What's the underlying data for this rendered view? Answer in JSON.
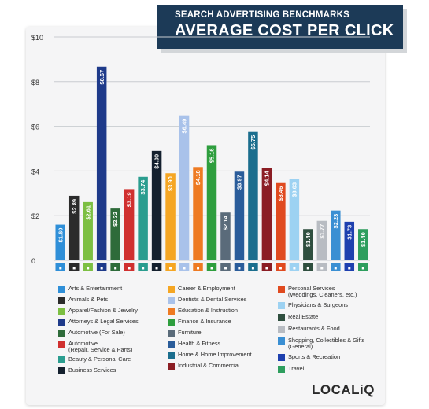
{
  "header": {
    "subtitle": "SEARCH ADVERTISING BENCHMARKS",
    "title": "AVERAGE COST PER CLICK"
  },
  "logo": "LOCALiQ",
  "chart_data": {
    "type": "bar",
    "ylim": [
      0,
      10
    ],
    "yticks": [
      "0",
      "$2",
      "$4",
      "$6",
      "$8",
      "$10"
    ],
    "grid": true,
    "categories": [
      "Arts & Entertainment",
      "Animals & Pets",
      "Apparel/Fashion & Jewelry",
      "Attorneys & Legal Services",
      "Automotive (For Sale)",
      "Automotive (Repair, Service & Parts)",
      "Beauty & Personal Care",
      "Business Services",
      "Career & Employment",
      "Dentists & Dental Services",
      "Education & Instruction",
      "Finance & Insurance",
      "Furniture",
      "Health & Fitness",
      "Home & Home Improvement",
      "Industrial & Commercial",
      "Personal Services (Weddings, Cleaners, etc.)",
      "Physicians & Surgeons",
      "Real Estate",
      "Restaurants & Food",
      "Shopping, Collectibles & Gifts (General)",
      "Sports & Recreation",
      "Travel"
    ],
    "values": [
      1.6,
      2.89,
      2.61,
      8.67,
      2.32,
      3.19,
      3.74,
      4.9,
      3.9,
      6.49,
      4.18,
      5.16,
      2.14,
      3.97,
      5.75,
      4.14,
      3.46,
      3.63,
      1.4,
      1.77,
      2.23,
      1.73,
      1.4
    ],
    "data_labels": [
      "$1.60",
      "$2.89",
      "$2.61",
      "$8.67",
      "$2.32",
      "$3.19",
      "$3.74",
      "$4.90",
      "$3.90",
      "$6.49",
      "$4.18",
      "$5.16",
      "$2.14",
      "$3.97",
      "$5.75",
      "$4.14",
      "$3.46",
      "$3.63",
      "$1.40",
      "$1.77",
      "$2.23",
      "$1.73",
      "$1.40"
    ],
    "colors": [
      "#2f8fd8",
      "#2b2b2b",
      "#7cbf42",
      "#1e3a8a",
      "#2e6b3a",
      "#d0302f",
      "#2a9d8f",
      "#14202e",
      "#f5a623",
      "#a9c2ea",
      "#ee7a22",
      "#2e9e3e",
      "#5a6b7a",
      "#2a5c9a",
      "#1b6e8e",
      "#8b1d24",
      "#e04a1f",
      "#9dd2f2",
      "#2f4f3f",
      "#b8bcc2",
      "#3a8fd3",
      "#1e40af",
      "#2e9e5e"
    ],
    "icons": [
      "palette-icon",
      "paw-icon",
      "shirt-icon",
      "gavel-icon",
      "car-tag-icon",
      "wrench-car-icon",
      "brush-icon",
      "briefcase-icon",
      "id-card-icon",
      "tooth-icon",
      "book-icon",
      "money-icon",
      "chair-icon",
      "heart-icon",
      "house-icon",
      "factory-icon",
      "scissors-icon",
      "stethoscope-icon",
      "building-icon",
      "cutlery-icon",
      "shopping-bag-icon",
      "ball-icon",
      "plane-icon"
    ],
    "legend_placement": "bottom"
  }
}
